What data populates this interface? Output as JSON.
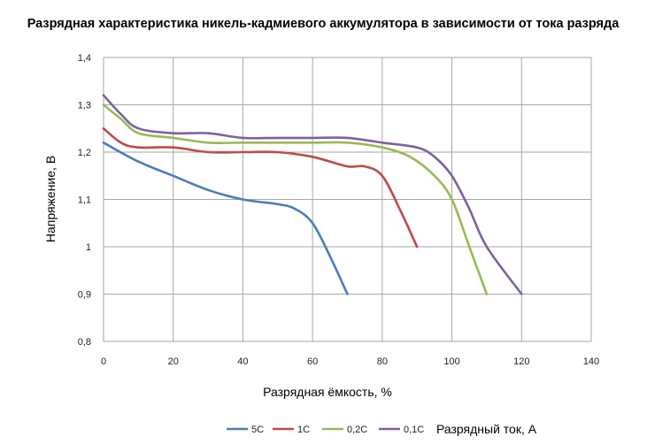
{
  "chart_data": {
    "type": "line",
    "title": "Разрядная характеристика никель-кадмиевого аккумулятора в зависимости от тока разряда",
    "xlabel": "Разрядная ёмкость, %",
    "ylabel": "Напряжение, В",
    "xlim": [
      0,
      140
    ],
    "ylim": [
      0.8,
      1.4
    ],
    "x_ticks": [
      "0",
      "20",
      "40",
      "60",
      "80",
      "100",
      "120",
      "140"
    ],
    "y_ticks": [
      "0,8",
      "0,9",
      "1",
      "1,1",
      "1,2",
      "1,3",
      "1,4"
    ],
    "grid": true,
    "legend_position": "bottom",
    "legend_title": "Разрядный ток, А",
    "series": [
      {
        "name": "5C",
        "color": "#4a7ebb",
        "x": [
          0,
          10,
          20,
          30,
          40,
          50,
          55,
          60,
          65,
          70
        ],
        "y": [
          1.22,
          1.18,
          1.15,
          1.12,
          1.1,
          1.09,
          1.08,
          1.05,
          0.98,
          0.9
        ]
      },
      {
        "name": "1C",
        "color": "#be4b48",
        "x": [
          0,
          5,
          10,
          20,
          30,
          40,
          50,
          60,
          70,
          75,
          80,
          85,
          90
        ],
        "y": [
          1.25,
          1.22,
          1.21,
          1.21,
          1.2,
          1.2,
          1.2,
          1.19,
          1.17,
          1.17,
          1.15,
          1.08,
          1.0
        ]
      },
      {
        "name": "0,2C",
        "color": "#98b954",
        "x": [
          0,
          5,
          10,
          20,
          30,
          40,
          50,
          60,
          70,
          80,
          88,
          95,
          100,
          105,
          110
        ],
        "y": [
          1.3,
          1.27,
          1.24,
          1.23,
          1.22,
          1.22,
          1.22,
          1.22,
          1.22,
          1.21,
          1.19,
          1.15,
          1.1,
          1.0,
          0.9
        ]
      },
      {
        "name": "0,1C",
        "color": "#7d60a0",
        "x": [
          0,
          5,
          10,
          20,
          30,
          40,
          50,
          60,
          70,
          80,
          90,
          95,
          100,
          105,
          110,
          120
        ],
        "y": [
          1.32,
          1.28,
          1.25,
          1.24,
          1.24,
          1.23,
          1.23,
          1.23,
          1.23,
          1.22,
          1.21,
          1.19,
          1.15,
          1.08,
          1.0,
          0.9
        ]
      }
    ]
  }
}
